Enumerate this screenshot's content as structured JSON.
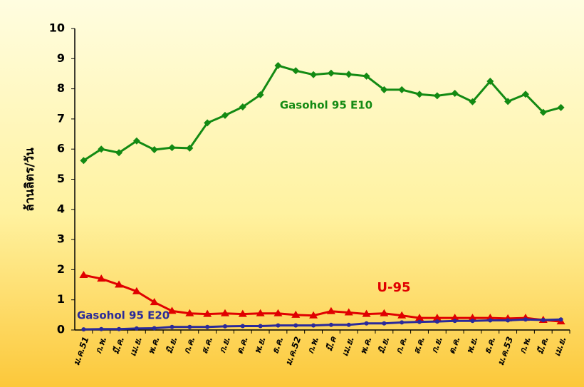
{
  "chart_data": {
    "type": "line",
    "y_label": "ล้านลิตร/วัน",
    "categories": [
      "ม.ค.51",
      "ก.พ.",
      "มี.ค.",
      "เม.ย.",
      "พ.ค.",
      "มิ.ย.",
      "ก.ค.",
      "ส.ค.",
      "ก.ย.",
      "ต.ค.",
      "พ.ย.",
      "ธ.ค.",
      "ม.ค.52",
      "ก.พ.",
      "มี.ค",
      "เม.ย.",
      "พ.ค.",
      "มิ.ย.",
      "ก.ค.",
      "ส.ค.",
      "ก.ย.",
      "ต.ค.",
      "พ.ย.",
      "ธ.ค.",
      "ม.ค.53",
      "ก.พ.",
      "มี.ค.",
      "เม.ย."
    ],
    "series": [
      {
        "name": "Gasohol 95 E10",
        "color": "#138a13",
        "marker": "diamond",
        "values": [
          5.62,
          6.0,
          5.88,
          6.27,
          5.98,
          6.05,
          6.03,
          6.87,
          7.12,
          7.4,
          7.8,
          8.77,
          8.6,
          8.47,
          8.52,
          8.48,
          8.42,
          7.97,
          7.97,
          7.82,
          7.77,
          7.85,
          7.57,
          8.25,
          7.58,
          7.82,
          7.22,
          7.38
        ]
      },
      {
        "name": "U-95",
        "color": "#e00000",
        "marker": "triangle",
        "values": [
          1.82,
          1.7,
          1.5,
          1.28,
          0.92,
          0.63,
          0.55,
          0.53,
          0.55,
          0.53,
          0.55,
          0.55,
          0.5,
          0.48,
          0.62,
          0.58,
          0.53,
          0.55,
          0.48,
          0.4,
          0.4,
          0.4,
          0.4,
          0.4,
          0.38,
          0.4,
          0.33,
          0.28
        ]
      },
      {
        "name": "Gasohol 95 E20",
        "color": "#2a2a9a",
        "marker": "circle",
        "values": [
          0.02,
          0.03,
          0.03,
          0.05,
          0.06,
          0.1,
          0.1,
          0.1,
          0.12,
          0.13,
          0.13,
          0.15,
          0.15,
          0.15,
          0.17,
          0.17,
          0.22,
          0.22,
          0.25,
          0.27,
          0.28,
          0.3,
          0.3,
          0.32,
          0.32,
          0.35,
          0.33,
          0.35
        ]
      }
    ],
    "ylim": [
      0,
      10
    ],
    "yticks": [
      0,
      1,
      2,
      3,
      4,
      5,
      6,
      7,
      8,
      9,
      10
    ],
    "grid": false
  }
}
